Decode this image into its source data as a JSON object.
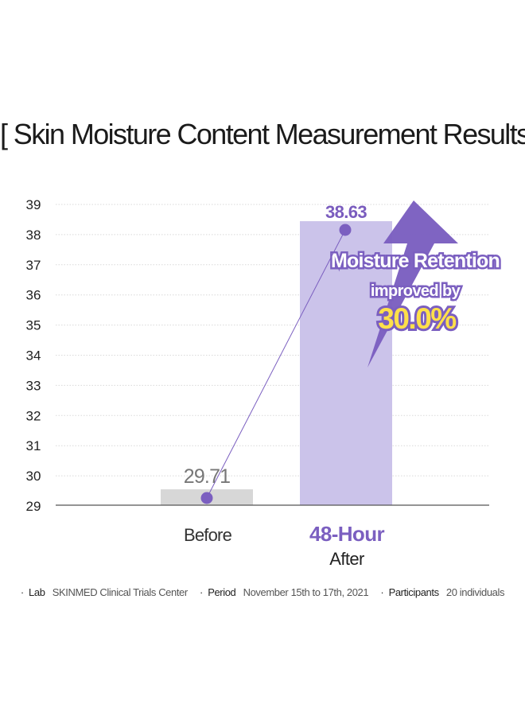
{
  "title": "[ Skin Moisture Content Measurement Results ]",
  "chart_data": {
    "type": "bar",
    "y_ticks": [
      29,
      30,
      31,
      32,
      33,
      34,
      35,
      36,
      37,
      38,
      39
    ],
    "ylim": [
      29,
      39
    ],
    "grid": true,
    "categories": [
      {
        "line1": "Before",
        "line2": ""
      },
      {
        "line1": "48-Hour",
        "line2": "After"
      }
    ],
    "values": [
      29.71,
      38.63
    ],
    "value_labels": [
      "29.71",
      "38.63"
    ],
    "bar_colors": [
      "#d7d7d7",
      "#cbc3ea"
    ],
    "label_colors": [
      "#777777",
      "#7a5cbe"
    ],
    "accent_color": "#7b5fc0",
    "line_color": "#7b5fc0",
    "callout": {
      "line1": "Moisture Retention",
      "line2": "improved by",
      "line3": "30.0%"
    }
  },
  "footer": [
    {
      "key": "Lab",
      "value": "SKINMED Clinical Trials Center"
    },
    {
      "key": "Period",
      "value": "November 15th to 17th, 2021"
    },
    {
      "key": "Participants",
      "value": "20 individuals"
    }
  ]
}
